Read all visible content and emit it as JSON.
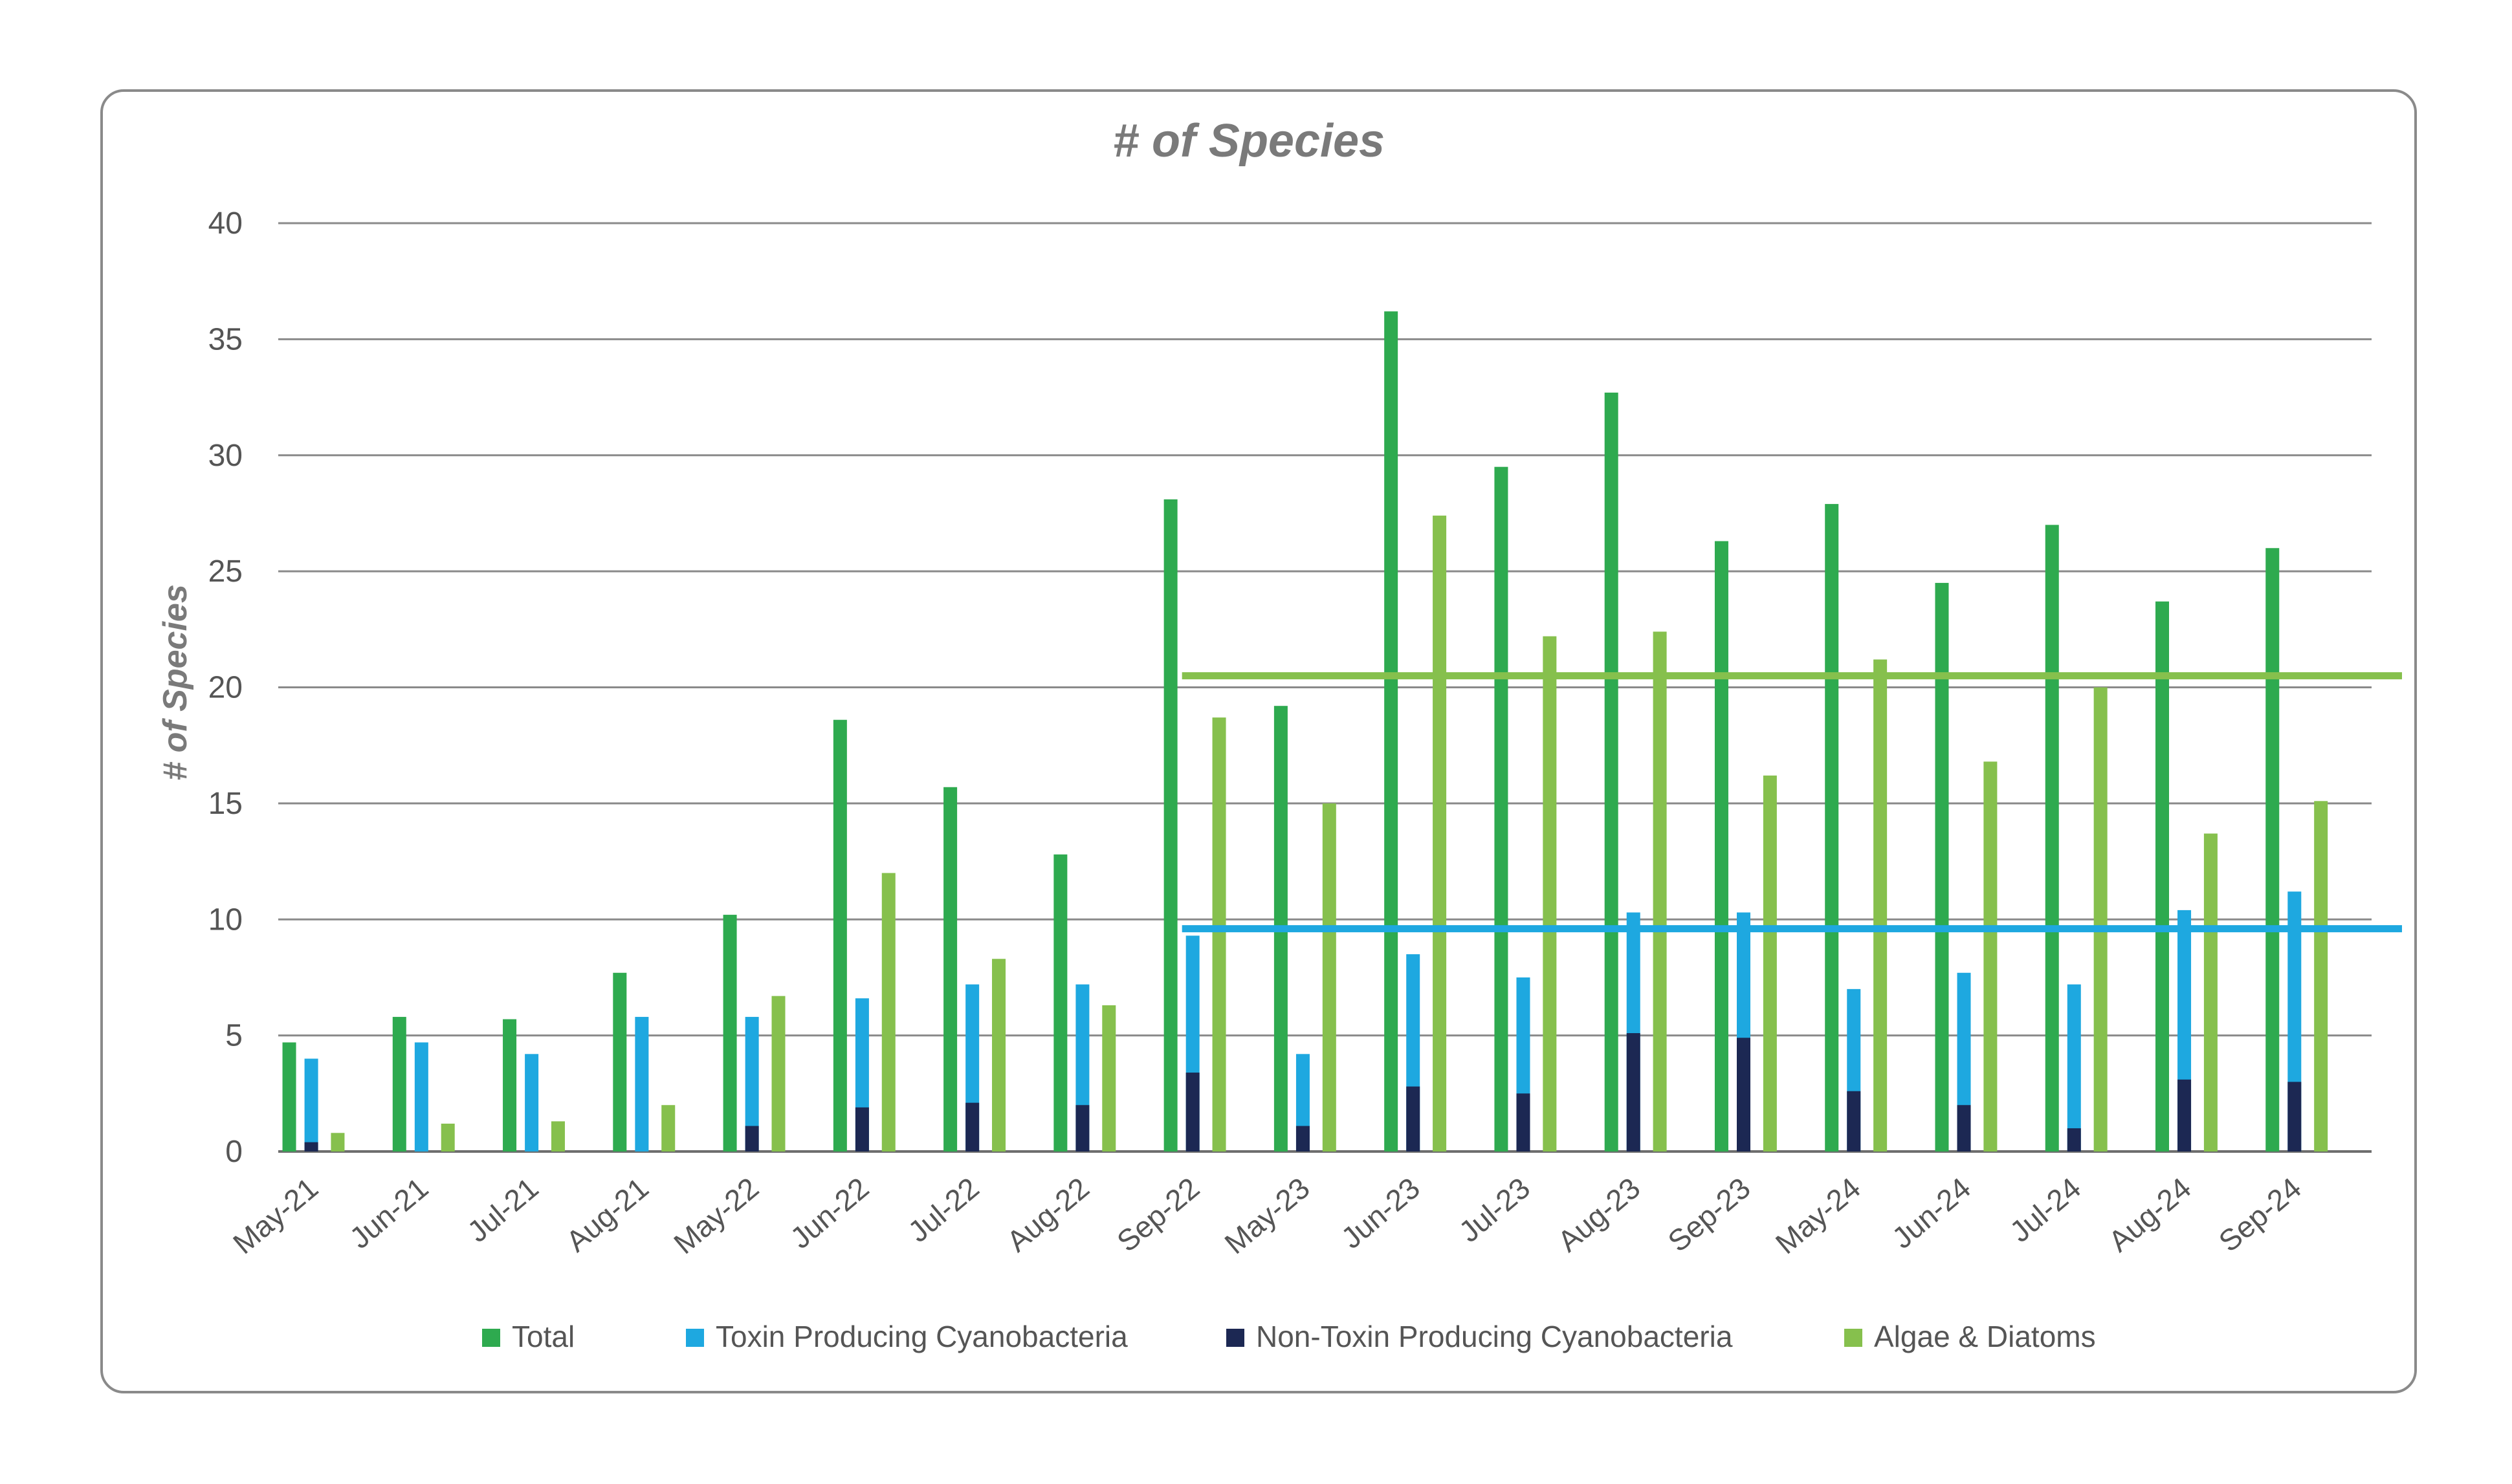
{
  "chart_data": {
    "type": "bar",
    "title": "# of Species",
    "ylabel": "# of Species",
    "xlabel": "",
    "ylim": [
      0,
      40
    ],
    "yticks": [
      0,
      5,
      10,
      15,
      20,
      25,
      30,
      35,
      40
    ],
    "grid": true,
    "legend_position": "bottom",
    "categories": [
      "May-21",
      "Jun-21",
      "Jul-21",
      "Aug-21",
      "May-22",
      "Jun-22",
      "Jul-22",
      "Aug-22",
      "Sep-22",
      "May-23",
      "Jun-23",
      "Jul-23",
      "Aug-23",
      "Sep-23",
      "May-24",
      "Jun-24",
      "Jul-24",
      "Aug-24",
      "Sep-24"
    ],
    "series": [
      {
        "name": "Total",
        "color": "#2eaa4f",
        "values": [
          4.7,
          5.8,
          5.7,
          7.7,
          10.2,
          18.6,
          15.7,
          12.8,
          28.1,
          19.2,
          36.2,
          29.5,
          32.7,
          26.3,
          27.9,
          24.5,
          27.0,
          23.7,
          26.0
        ]
      },
      {
        "name": "Toxin Producing Cyanobacteria",
        "color": "#1ea8e0",
        "values": [
          4.0,
          4.7,
          4.2,
          5.8,
          5.8,
          6.6,
          7.2,
          7.2,
          9.3,
          4.2,
          8.5,
          7.5,
          10.3,
          10.3,
          7.0,
          7.7,
          7.2,
          10.4,
          11.2
        ]
      },
      {
        "name": "Non-Toxin Producing Cyanobacteria",
        "color": "#1c2853",
        "values": [
          0.4,
          0,
          0,
          0,
          1.1,
          1.9,
          2.1,
          2.0,
          3.4,
          1.1,
          2.8,
          2.5,
          5.1,
          4.9,
          2.6,
          2.0,
          1.0,
          3.1,
          3.0
        ]
      },
      {
        "name": "Algae & Diatoms",
        "color": "#86c04d",
        "values": [
          0.8,
          1.2,
          1.3,
          2.0,
          6.7,
          12.0,
          8.3,
          6.3,
          18.7,
          15.0,
          27.4,
          22.2,
          22.4,
          16.2,
          21.2,
          16.8,
          20.0,
          13.7,
          15.1
        ]
      }
    ],
    "reference_lines": [
      {
        "color": "#86c04d",
        "value": 20.5,
        "from_category": "Sep-22"
      },
      {
        "color": "#1ea8e0",
        "value": 9.6,
        "from_category": "Sep-22"
      }
    ]
  }
}
